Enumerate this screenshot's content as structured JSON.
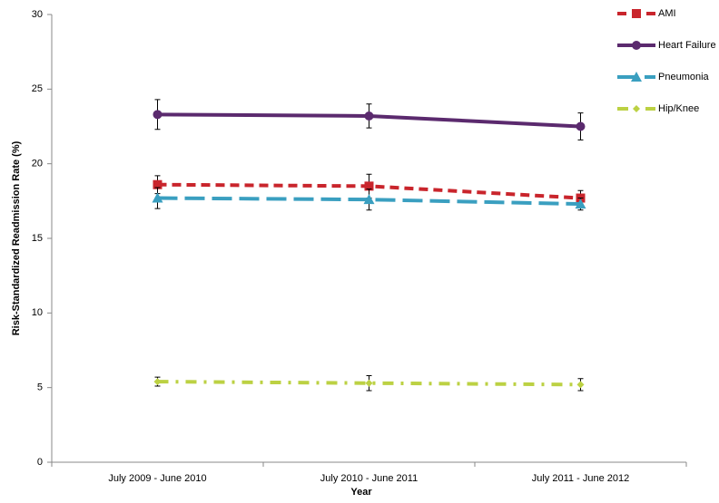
{
  "chart_data": {
    "type": "line",
    "x_label": "Year",
    "y_label": "Risk-Standardized Readmission Rate (%)",
    "categories": [
      "July 2009 - June 2010",
      "July 2010 - June 2011",
      "July 2011 - June 2012"
    ],
    "series": [
      {
        "name": "AMI",
        "color": "#c9252c",
        "dash": "10,6",
        "marker": "square",
        "values": [
          18.6,
          18.5,
          17.7
        ],
        "errors": [
          0.6,
          0.8,
          0.5
        ]
      },
      {
        "name": "Heart Failure",
        "color": "#5b2a6e",
        "dash": "none",
        "marker": "circle",
        "values": [
          23.3,
          23.2,
          22.5
        ],
        "errors": [
          1.0,
          0.8,
          0.9
        ]
      },
      {
        "name": "Pneumonia",
        "color": "#3a9fc0",
        "dash": "22,8",
        "marker": "triangle",
        "values": [
          17.7,
          17.6,
          17.3
        ],
        "errors": [
          0.7,
          0.7,
          0.4
        ]
      },
      {
        "name": "Hip/Knee",
        "color": "#bcd143",
        "dash": "12,8,3,8",
        "marker": "diamond",
        "values": [
          5.4,
          5.3,
          5.2
        ],
        "errors": [
          0.3,
          0.5,
          0.4
        ]
      }
    ],
    "ylim": [
      0,
      30
    ],
    "yticks": [
      0,
      5,
      10,
      15,
      20,
      25,
      30
    ],
    "grid": false
  }
}
